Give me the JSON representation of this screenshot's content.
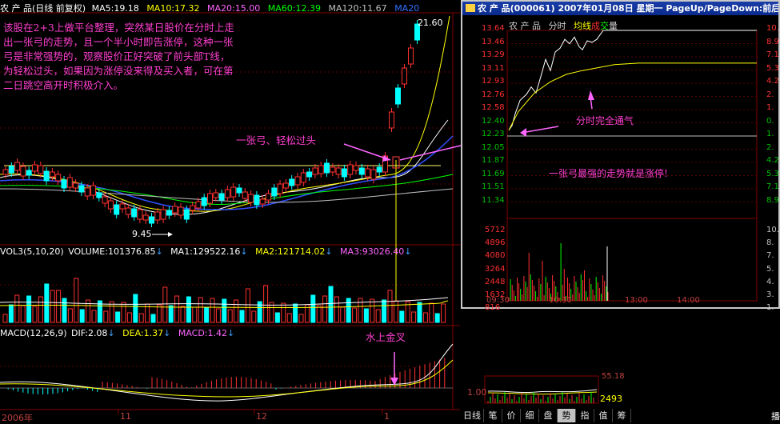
{
  "main": {
    "header": {
      "stock": "农 产 品",
      "period": "(日线 前复权)",
      "ma5": "MA5:19.18",
      "ma10": "MA10:17.32",
      "ma20": "MA20:15.00",
      "ma60": "MA60:12.39",
      "ma120": "MA120:11.67",
      "ma20b": "MA20"
    },
    "price_high": "21.60",
    "price_low": "9.45",
    "annotations": {
      "para": [
        "该股在2+3上做平台整理，突然某日股价在分时上走",
        "出一张弓的走势，且一个半小时即告涨停，这种一张",
        "弓是非常强势的，观察股价正好突破了前头部T线，",
        "为轻松过头，如果因为涨停没来得及买入者，可在第",
        "二日跳空高开时积极介入。"
      ],
      "yizhanggong": "一张弓、轻松过头",
      "shuishang": "水上金叉"
    },
    "volume_header": {
      "vol": "VOL3(5,10,20)",
      "volume": "VOLUME:101376.85",
      "ma1": "MA1:129522.16",
      "ma2": "MA2:121714.02",
      "ma3": "MA3:93026.40"
    },
    "macd_header": {
      "macd": "MACD(12,26,9)",
      "dif": "DIF:2.08",
      "dea": "DEA:1.37",
      "macdv": "MACD:1.42"
    },
    "xaxis": [
      "2006年",
      "11",
      "12",
      "1"
    ]
  },
  "popup": {
    "title": "农 产 品(000061) 2007年01月08日 星期一  PageUp/PageDown:前后日",
    "tabs": [
      "农 产 品",
      "分时",
      "均线",
      "成",
      "交",
      "量"
    ],
    "price_ticks": [
      "13.64",
      "13.46",
      "13.29",
      "13.11",
      "12.93",
      "12.76",
      "12.58",
      "12.40",
      "12.23",
      "12.05",
      "11.87",
      "11.69",
      "11.51",
      "11.34"
    ],
    "pct_ticks": [
      "10.",
      "8.9",
      "7.1",
      "5.3",
      "4.2",
      "2.",
      "1.",
      "0.",
      "1.",
      "2.",
      "4.2",
      "5.3",
      "7.1",
      "8.9"
    ],
    "vol_ticks": [
      "5712",
      "4896",
      "4080",
      "3264",
      "2448",
      "1632",
      "816"
    ],
    "vol_right": [
      "10.",
      "8.",
      "7.",
      "5.",
      "4.",
      "3.",
      "1."
    ],
    "time_ticks": [
      "09:30",
      "10:30",
      "13:00",
      "14:00"
    ],
    "annot_wantong": "分时完全通气",
    "annot_zhangting": "一张弓最强的走势就是涨停!",
    "chart_data": {
      "type": "line",
      "x": [
        "09:30",
        "10:00",
        "10:30",
        "10:45",
        "11:00",
        "11:30"
      ],
      "series": [
        {
          "values": [
            12.3,
            12.85,
            13.4,
            13.55,
            13.5,
            13.64
          ]
        },
        {
          "values": [
            12.3,
            12.7,
            12.95,
            13.05,
            13.1,
            13.18
          ]
        }
      ],
      "ylim": [
        11.34,
        13.64
      ]
    }
  },
  "mini": {
    "left_label": "1.00",
    "right_label": "2493",
    "top_label": "55.18"
  },
  "tabs": [
    "日线",
    "笔",
    "价",
    "细",
    "盘",
    "势",
    "指",
    "值",
    "筹"
  ],
  "active_tab": "势",
  "right_corner": "播"
}
